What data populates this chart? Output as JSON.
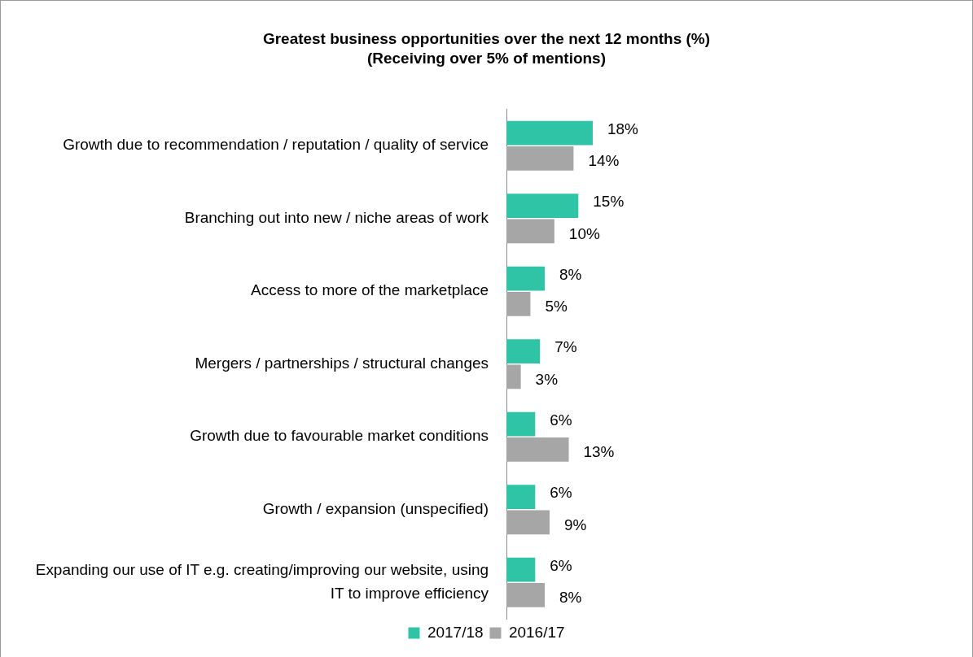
{
  "chart_data": {
    "type": "bar",
    "orientation": "horizontal",
    "title": "Greatest business opportunities over the next 12 months (%)",
    "subtitle": "(Receiving over 5% of mentions)",
    "categories": [
      "Growth due to recommendation / reputation / quality of service",
      "Branching out into new / niche areas of work",
      "Access to more of the marketplace",
      "Mergers / partnerships / structural changes",
      "Growth due to favourable market conditions",
      "Growth / expansion (unspecified)",
      "Expanding our use of IT e.g. creating/improving our website, using IT to improve efficiency"
    ],
    "series": [
      {
        "name": "2017/18",
        "color": "#2ec4a5",
        "values": [
          18,
          15,
          8,
          7,
          6,
          6,
          6
        ],
        "value_labels": [
          "18%",
          "15%",
          "8%",
          "7%",
          "6%",
          "6%",
          "6%"
        ]
      },
      {
        "name": "2016/17",
        "color": "#a6a6a6",
        "values": [
          14,
          10,
          5,
          3,
          13,
          9,
          8
        ],
        "value_labels": [
          "14%",
          "10%",
          "5%",
          "3%",
          "13%",
          "9%",
          "8%"
        ]
      }
    ],
    "grid": false,
    "legend": "bottom"
  }
}
